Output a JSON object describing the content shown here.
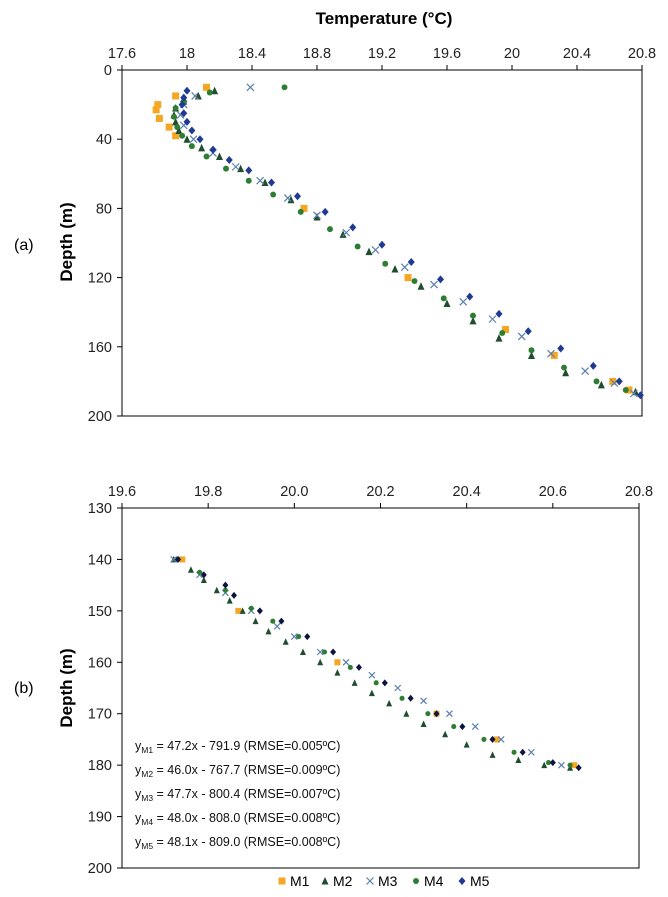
{
  "colors": {
    "M1": "#F5A623",
    "M2": "#1F4D2E",
    "M3": "#5B7FB0",
    "M4": "#2E7D32",
    "M5": "#1F3A93",
    "M5b": "#0D1440",
    "axis": "#000000",
    "grid": "#B5B5B5"
  },
  "legend": {
    "entries": [
      {
        "key": "M1",
        "label": "M1",
        "marker": "square"
      },
      {
        "key": "M2",
        "label": "M2",
        "marker": "triangle"
      },
      {
        "key": "M3",
        "label": "M3",
        "marker": "cross"
      },
      {
        "key": "M4",
        "label": "M4",
        "marker": "circle"
      },
      {
        "key": "M5",
        "label": "M5",
        "marker": "diamond"
      }
    ]
  },
  "equations": [
    {
      "y": "y",
      "sub": "M1",
      "text": " = 47.2x - 791.9 (RMSE=0.005ºC)"
    },
    {
      "y": "y",
      "sub": "M2",
      "text": " = 46.0x - 767.7 (RMSE=0.009ºC)"
    },
    {
      "y": "y",
      "sub": "M3",
      "text": " = 47.7x - 800.4 (RMSE=0.007ºC)"
    },
    {
      "y": "y",
      "sub": "M4",
      "text": " = 48.0x - 808.0 (RMSE=0.008ºC)"
    },
    {
      "y": "y",
      "sub": "M5",
      "text": " = 48.1x - 809.0 (RMSE=0.008ºC)"
    }
  ],
  "chart_data": [
    {
      "panel_label": "(a)",
      "type": "scatter",
      "title": "Temperature (°C)",
      "xlabel": "Temperature (°C)",
      "ylabel": "Depth (m)",
      "xlim": [
        17.6,
        20.8
      ],
      "ylim": [
        0,
        200
      ],
      "y_inverted": true,
      "x_axis_position": "top",
      "xticks": [
        17.6,
        18,
        18.4,
        18.8,
        19.2,
        19.6,
        20,
        20.4,
        20.8
      ],
      "xtick_labels": [
        "17.6",
        "18",
        "18.4",
        "18.8",
        "19.2",
        "19.6",
        "20",
        "20.4",
        "20.8"
      ],
      "yticks": [
        0,
        40,
        80,
        120,
        160,
        200
      ],
      "ytick_labels": [
        "0",
        "40",
        "80",
        "120",
        "160",
        "200"
      ],
      "grid": false,
      "series": [
        {
          "name": "M1",
          "marker": "square",
          "points": [
            [
              18.12,
              10
            ],
            [
              17.93,
              15
            ],
            [
              17.82,
              20
            ],
            [
              17.81,
              23
            ],
            [
              17.83,
              28
            ],
            [
              17.89,
              33
            ],
            [
              17.93,
              38
            ],
            [
              18.72,
              80
            ],
            [
              19.36,
              120
            ],
            [
              19.96,
              150
            ],
            [
              20.26,
              165
            ],
            [
              20.62,
              180
            ],
            [
              20.72,
              185
            ]
          ]
        },
        {
          "name": "M2",
          "marker": "triangle",
          "points": [
            [
              18.17,
              12
            ],
            [
              18.07,
              15
            ],
            [
              17.98,
              18
            ],
            [
              17.93,
              22
            ],
            [
              17.92,
              26
            ],
            [
              17.93,
              30
            ],
            [
              17.95,
              35
            ],
            [
              18.0,
              40
            ],
            [
              18.09,
              45
            ],
            [
              18.2,
              50
            ],
            [
              18.33,
              57
            ],
            [
              18.48,
              65
            ],
            [
              18.64,
              75
            ],
            [
              18.8,
              85
            ],
            [
              18.96,
              95
            ],
            [
              19.12,
              105
            ],
            [
              19.28,
              115
            ],
            [
              19.44,
              125
            ],
            [
              19.6,
              135
            ],
            [
              19.76,
              145
            ],
            [
              19.92,
              155
            ],
            [
              20.12,
              165
            ],
            [
              20.33,
              175
            ],
            [
              20.55,
              182
            ],
            [
              20.76,
              186
            ]
          ]
        },
        {
          "name": "M3",
          "marker": "cross",
          "points": [
            [
              18.39,
              10
            ],
            [
              18.05,
              15
            ],
            [
              17.98,
              20
            ],
            [
              17.96,
              26
            ],
            [
              17.98,
              32
            ],
            [
              18.04,
              40
            ],
            [
              18.16,
              48
            ],
            [
              18.3,
              56
            ],
            [
              18.45,
              64
            ],
            [
              18.62,
              74
            ],
            [
              18.8,
              84
            ],
            [
              18.98,
              94
            ],
            [
              19.16,
              104
            ],
            [
              19.34,
              114
            ],
            [
              19.52,
              124
            ],
            [
              19.7,
              134
            ],
            [
              19.88,
              144
            ],
            [
              20.06,
              154
            ],
            [
              20.24,
              164
            ],
            [
              20.45,
              174
            ],
            [
              20.63,
              181
            ],
            [
              20.75,
              187
            ]
          ]
        },
        {
          "name": "M4",
          "marker": "circle",
          "points": [
            [
              18.6,
              10
            ],
            [
              18.14,
              13
            ],
            [
              17.98,
              18
            ],
            [
              17.93,
              22
            ],
            [
              17.92,
              27
            ],
            [
              17.94,
              33
            ],
            [
              17.97,
              38
            ],
            [
              18.03,
              44
            ],
            [
              18.12,
              50
            ],
            [
              18.24,
              57
            ],
            [
              18.38,
              64
            ],
            [
              18.53,
              72
            ],
            [
              18.7,
              82
            ],
            [
              18.88,
              92
            ],
            [
              19.05,
              102
            ],
            [
              19.22,
              112
            ],
            [
              19.4,
              122
            ],
            [
              19.58,
              132
            ],
            [
              19.76,
              142
            ],
            [
              19.94,
              152
            ],
            [
              20.12,
              162
            ],
            [
              20.32,
              172
            ],
            [
              20.52,
              180
            ],
            [
              20.7,
              185
            ]
          ]
        },
        {
          "name": "M5",
          "marker": "diamond",
          "points": [
            [
              18.0,
              12
            ],
            [
              17.98,
              16
            ],
            [
              17.97,
              20
            ],
            [
              17.98,
              25
            ],
            [
              18.0,
              30
            ],
            [
              18.03,
              35
            ],
            [
              18.08,
              40
            ],
            [
              18.16,
              46
            ],
            [
              18.26,
              52
            ],
            [
              18.38,
              58
            ],
            [
              18.52,
              65
            ],
            [
              18.68,
              73
            ],
            [
              18.85,
              82
            ],
            [
              19.02,
              91
            ],
            [
              19.2,
              101
            ],
            [
              19.38,
              111
            ],
            [
              19.56,
              121
            ],
            [
              19.74,
              131
            ],
            [
              19.92,
              141
            ],
            [
              20.1,
              151
            ],
            [
              20.3,
              161
            ],
            [
              20.5,
              171
            ],
            [
              20.66,
              180
            ],
            [
              20.79,
              188
            ]
          ]
        }
      ]
    },
    {
      "panel_label": "(b)",
      "type": "scatter",
      "ylabel": "Depth (m)",
      "xlim": [
        19.6,
        20.8
      ],
      "ylim": [
        130,
        200
      ],
      "y_inverted": true,
      "x_axis_position": "top",
      "xticks": [
        19.6,
        19.8,
        20.0,
        20.2,
        20.4,
        20.6,
        20.8
      ],
      "xtick_labels": [
        "19.6",
        "19.8",
        "20.0",
        "20.2",
        "20.4",
        "20.6",
        "20.8"
      ],
      "yticks": [
        130,
        140,
        150,
        160,
        170,
        180,
        190,
        200
      ],
      "ytick_labels": [
        "130",
        "140",
        "150",
        "160",
        "170",
        "180",
        "190",
        "200"
      ],
      "grid": false,
      "series": [
        {
          "name": "M1",
          "marker": "square",
          "points": [
            [
              19.74,
              140
            ],
            [
              19.87,
              150
            ],
            [
              20.1,
              160
            ],
            [
              20.33,
              170
            ],
            [
              20.47,
              175
            ],
            [
              20.65,
              180
            ]
          ]
        },
        {
          "name": "M2",
          "marker": "triangle",
          "points": [
            [
              19.72,
              140
            ],
            [
              19.76,
              142
            ],
            [
              19.79,
              144
            ],
            [
              19.82,
              146
            ],
            [
              19.85,
              148
            ],
            [
              19.88,
              150
            ],
            [
              19.91,
              152
            ],
            [
              19.94,
              154
            ],
            [
              19.98,
              156
            ],
            [
              20.02,
              158
            ],
            [
              20.06,
              160
            ],
            [
              20.1,
              162
            ],
            [
              20.14,
              164
            ],
            [
              20.18,
              166
            ],
            [
              20.22,
              168
            ],
            [
              20.26,
              170
            ],
            [
              20.3,
              172
            ],
            [
              20.35,
              174
            ],
            [
              20.4,
              176
            ],
            [
              20.46,
              178
            ],
            [
              20.52,
              179
            ],
            [
              20.58,
              180
            ],
            [
              20.64,
              180.5
            ]
          ]
        },
        {
          "name": "M3",
          "marker": "cross",
          "points": [
            [
              19.72,
              140
            ],
            [
              19.78,
              143
            ],
            [
              19.84,
              146.5
            ],
            [
              19.9,
              150
            ],
            [
              19.96,
              153
            ],
            [
              20.0,
              155
            ],
            [
              20.06,
              158
            ],
            [
              20.12,
              160
            ],
            [
              20.18,
              162.5
            ],
            [
              20.24,
              165
            ],
            [
              20.3,
              167.5
            ],
            [
              20.36,
              170
            ],
            [
              20.42,
              172.5
            ],
            [
              20.48,
              175
            ],
            [
              20.55,
              177.5
            ],
            [
              20.62,
              180
            ]
          ]
        },
        {
          "name": "M4",
          "marker": "circle",
          "points": [
            [
              19.73,
              140
            ],
            [
              19.78,
              142.5
            ],
            [
              19.84,
              146
            ],
            [
              19.9,
              149.5
            ],
            [
              19.95,
              152
            ],
            [
              20.01,
              155
            ],
            [
              20.07,
              158
            ],
            [
              20.13,
              161
            ],
            [
              20.19,
              164
            ],
            [
              20.25,
              167
            ],
            [
              20.31,
              170
            ],
            [
              20.37,
              172.5
            ],
            [
              20.44,
              175
            ],
            [
              20.51,
              177.5
            ],
            [
              20.59,
              179.5
            ],
            [
              20.64,
              180
            ]
          ]
        },
        {
          "name": "M5",
          "marker": "diamond",
          "points": [
            [
              19.73,
              140
            ],
            [
              19.79,
              143
            ],
            [
              19.84,
              145
            ],
            [
              19.86,
              147
            ],
            [
              19.92,
              150
            ],
            [
              19.97,
              152
            ],
            [
              20.03,
              155
            ],
            [
              20.09,
              158
            ],
            [
              20.15,
              161
            ],
            [
              20.21,
              164
            ],
            [
              20.27,
              167
            ],
            [
              20.33,
              170
            ],
            [
              20.39,
              172.5
            ],
            [
              20.46,
              175
            ],
            [
              20.53,
              177.5
            ],
            [
              20.6,
              179.5
            ],
            [
              20.66,
              180.5
            ]
          ]
        }
      ]
    }
  ]
}
